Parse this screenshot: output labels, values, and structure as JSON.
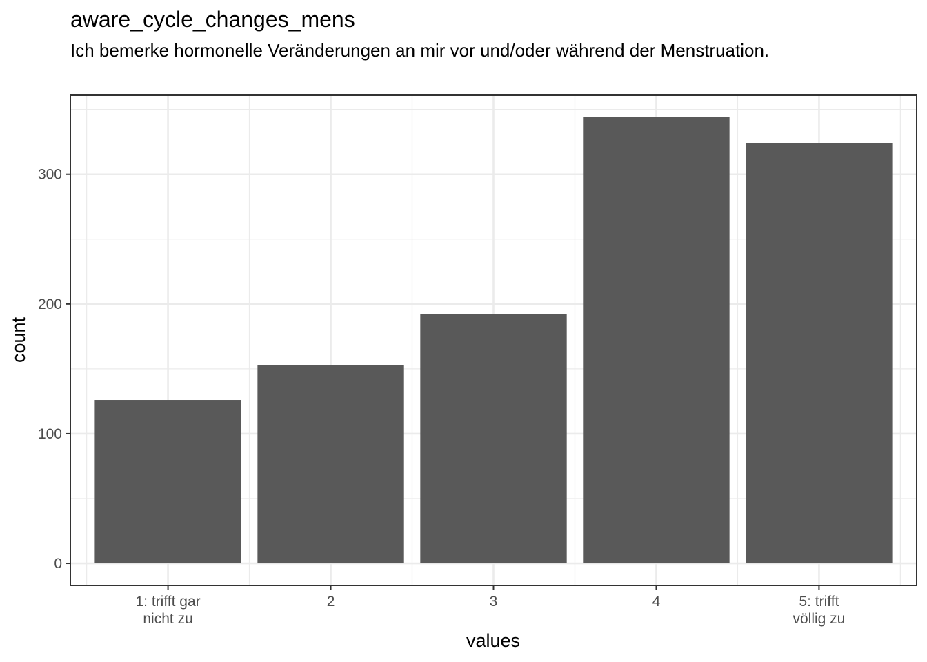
{
  "chart_data": {
    "type": "bar",
    "title": "aware_cycle_changes_mens",
    "subtitle": "Ich bemerke hormonelle Veränderungen an mir vor und/oder während der Menstruation.",
    "xlabel": "values",
    "ylabel": "count",
    "categories": [
      [
        "1: trifft gar",
        "nicht zu"
      ],
      [
        "2"
      ],
      [
        "3"
      ],
      [
        "4"
      ],
      [
        "5: trifft",
        "völlig zu"
      ]
    ],
    "values": [
      126,
      153,
      192,
      344,
      324
    ],
    "yticks": [
      0,
      100,
      200,
      300
    ],
    "ylim": [
      -17,
      361
    ],
    "bar_color": "#595959",
    "grid": true
  }
}
